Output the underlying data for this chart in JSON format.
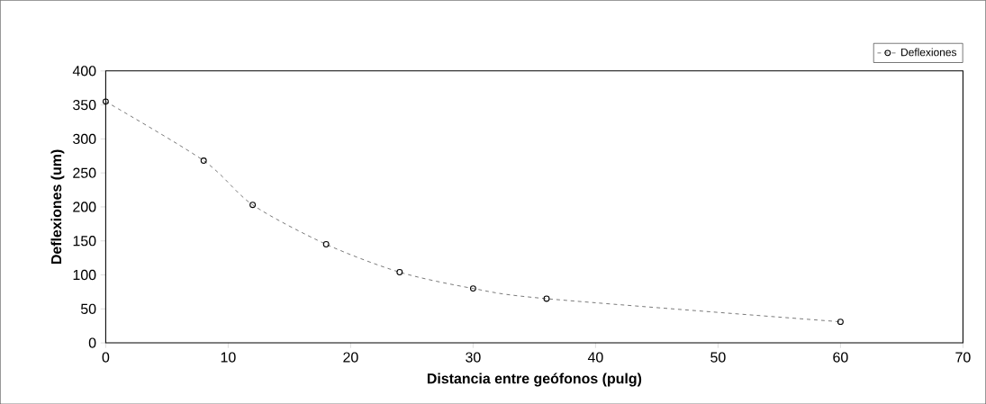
{
  "chart_data": {
    "type": "line",
    "xlabel": "Distancia entre geófonos (pulg)",
    "ylabel": "Deflexiones (um)",
    "x": [
      0,
      8,
      12,
      18,
      24,
      30,
      36,
      60
    ],
    "series": [
      {
        "name": "Deflexiones",
        "color": "#000000",
        "values": [
          355,
          268,
          203,
          145,
          104,
          80,
          65,
          31
        ]
      }
    ],
    "xlim": [
      0,
      70
    ],
    "xticks": [
      0,
      10,
      20,
      30,
      40,
      50,
      60,
      70
    ],
    "ylim": [
      0,
      400
    ],
    "yticks": [
      0,
      50,
      100,
      150,
      200,
      250,
      300,
      350,
      400
    ],
    "grid": false,
    "legend": "top right",
    "marker": "circle",
    "line_style": "dashed"
  }
}
